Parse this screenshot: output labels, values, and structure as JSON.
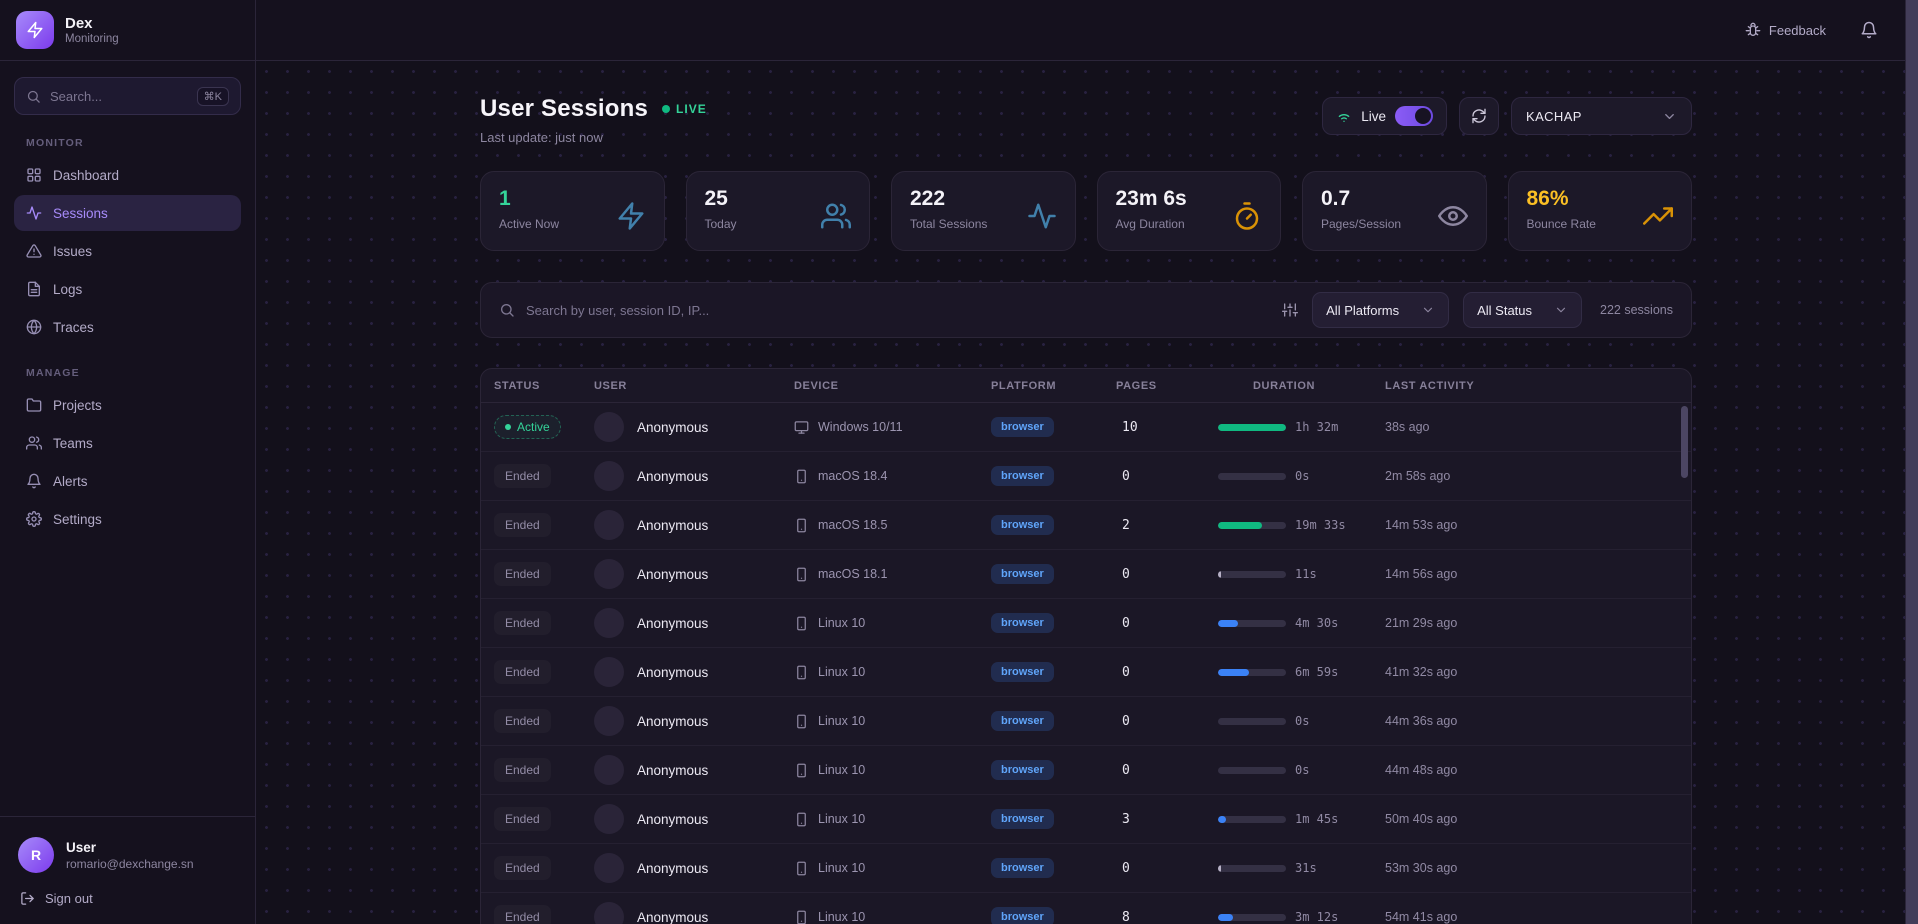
{
  "brand": {
    "name": "Dex",
    "subtitle": "Monitoring"
  },
  "topbar": {
    "feedback_label": "Feedback"
  },
  "sidebar": {
    "search": {
      "placeholder": "Search...",
      "shortcut": "⌘K"
    },
    "sections": [
      {
        "label": "MONITOR",
        "items": [
          {
            "label": "Dashboard",
            "icon": "dashboard-icon",
            "active": false
          },
          {
            "label": "Sessions",
            "icon": "activity-icon",
            "active": true
          },
          {
            "label": "Issues",
            "icon": "alert-triangle-icon",
            "active": false
          },
          {
            "label": "Logs",
            "icon": "file-text-icon",
            "active": false
          },
          {
            "label": "Traces",
            "icon": "globe-icon",
            "active": false
          }
        ]
      },
      {
        "label": "MANAGE",
        "items": [
          {
            "label": "Projects",
            "icon": "folder-icon",
            "active": false
          },
          {
            "label": "Teams",
            "icon": "users-icon",
            "active": false
          },
          {
            "label": "Alerts",
            "icon": "bell-icon",
            "active": false
          },
          {
            "label": "Settings",
            "icon": "gear-icon",
            "active": false
          }
        ]
      }
    ],
    "user": {
      "name": "User",
      "email": "romario@dexchange.sn",
      "avatar_initial": "R",
      "signout_label": "Sign out"
    }
  },
  "header": {
    "title": "User Sessions",
    "live_badge": "LIVE",
    "last_update": "Last update: just now",
    "live_toggle_label": "Live",
    "project_selector": "KACHAP"
  },
  "colors": {
    "accent_purple": "#8b5cf6",
    "live_green": "#34d399",
    "info_blue": "#60a5fa",
    "warn_amber": "#fbbf24",
    "steel_blue": "#4180ab"
  },
  "stats": [
    {
      "value": "1",
      "label": "Active Now",
      "icon": "zap-icon",
      "value_color": "#34d399",
      "icon_color": "#4180ab"
    },
    {
      "value": "25",
      "label": "Today",
      "icon": "users-icon",
      "value_color": "#f4f2f8",
      "icon_color": "#4180ab"
    },
    {
      "value": "222",
      "label": "Total Sessions",
      "icon": "activity-icon",
      "value_color": "#f4f2f8",
      "icon_color": "#4180ab"
    },
    {
      "value": "23m 6s",
      "label": "Avg Duration",
      "icon": "timer-icon",
      "value_color": "#f4f2f8",
      "icon_color": "#d99206"
    },
    {
      "value": "0.7",
      "label": "Pages/Session",
      "icon": "eye-icon",
      "value_color": "#f4f2f8",
      "icon_color": "#8d86a0"
    },
    {
      "value": "86%",
      "label": "Bounce Rate",
      "icon": "trending-up-icon",
      "value_color": "#fbbf24",
      "icon_color": "#d99206"
    }
  ],
  "filters": {
    "search_placeholder": "Search by user, session ID, IP...",
    "platform_filter": "All Platforms",
    "status_filter": "All Status",
    "session_count": "222 sessions"
  },
  "table": {
    "columns": [
      "STATUS",
      "USER",
      "DEVICE",
      "PLATFORM",
      "PAGES",
      "DURATION",
      "LAST ACTIVITY"
    ],
    "rows": [
      {
        "status": "Active",
        "active": true,
        "user": "Anonymous",
        "device": "Windows 10/11",
        "device_icon": "monitor-icon",
        "platform": "browser",
        "pages": "10",
        "duration": "1h 32m",
        "bar_pct": 100,
        "bar_color": "#10b981",
        "last_activity": "38s ago"
      },
      {
        "status": "Ended",
        "active": false,
        "user": "Anonymous",
        "device": "macOS 18.4",
        "device_icon": "smartphone-icon",
        "platform": "browser",
        "pages": "0",
        "duration": "0s",
        "bar_pct": 0,
        "bar_color": "",
        "last_activity": "2m 58s ago"
      },
      {
        "status": "Ended",
        "active": false,
        "user": "Anonymous",
        "device": "macOS 18.5",
        "device_icon": "smartphone-icon",
        "platform": "browser",
        "pages": "2",
        "duration": "19m 33s",
        "bar_pct": 65,
        "bar_color": "#10b981",
        "last_activity": "14m 53s ago"
      },
      {
        "status": "Ended",
        "active": false,
        "user": "Anonymous",
        "device": "macOS 18.1",
        "device_icon": "smartphone-icon",
        "platform": "browser",
        "pages": "0",
        "duration": "11s",
        "bar_pct": 5,
        "bar_color": "#b7b1c6",
        "last_activity": "14m 56s ago"
      },
      {
        "status": "Ended",
        "active": false,
        "user": "Anonymous",
        "device": "Linux 10",
        "device_icon": "smartphone-icon",
        "platform": "browser",
        "pages": "0",
        "duration": "4m 30s",
        "bar_pct": 30,
        "bar_color": "#3b82f6",
        "last_activity": "21m 29s ago"
      },
      {
        "status": "Ended",
        "active": false,
        "user": "Anonymous",
        "device": "Linux 10",
        "device_icon": "smartphone-icon",
        "platform": "browser",
        "pages": "0",
        "duration": "6m 59s",
        "bar_pct": 45,
        "bar_color": "#3b82f6",
        "last_activity": "41m 32s ago"
      },
      {
        "status": "Ended",
        "active": false,
        "user": "Anonymous",
        "device": "Linux 10",
        "device_icon": "smartphone-icon",
        "platform": "browser",
        "pages": "0",
        "duration": "0s",
        "bar_pct": 0,
        "bar_color": "",
        "last_activity": "44m 36s ago"
      },
      {
        "status": "Ended",
        "active": false,
        "user": "Anonymous",
        "device": "Linux 10",
        "device_icon": "smartphone-icon",
        "platform": "browser",
        "pages": "0",
        "duration": "0s",
        "bar_pct": 0,
        "bar_color": "",
        "last_activity": "44m 48s ago"
      },
      {
        "status": "Ended",
        "active": false,
        "user": "Anonymous",
        "device": "Linux 10",
        "device_icon": "smartphone-icon",
        "platform": "browser",
        "pages": "3",
        "duration": "1m 45s",
        "bar_pct": 12,
        "bar_color": "#3b82f6",
        "last_activity": "50m 40s ago"
      },
      {
        "status": "Ended",
        "active": false,
        "user": "Anonymous",
        "device": "Linux 10",
        "device_icon": "smartphone-icon",
        "platform": "browser",
        "pages": "0",
        "duration": "31s",
        "bar_pct": 5,
        "bar_color": "#b7b1c6",
        "last_activity": "53m 30s ago"
      },
      {
        "status": "Ended",
        "active": false,
        "user": "Anonymous",
        "device": "Linux 10",
        "device_icon": "smartphone-icon",
        "platform": "browser",
        "pages": "8",
        "duration": "3m 12s",
        "bar_pct": 22,
        "bar_color": "#3b82f6",
        "last_activity": "54m 41s ago"
      }
    ]
  }
}
